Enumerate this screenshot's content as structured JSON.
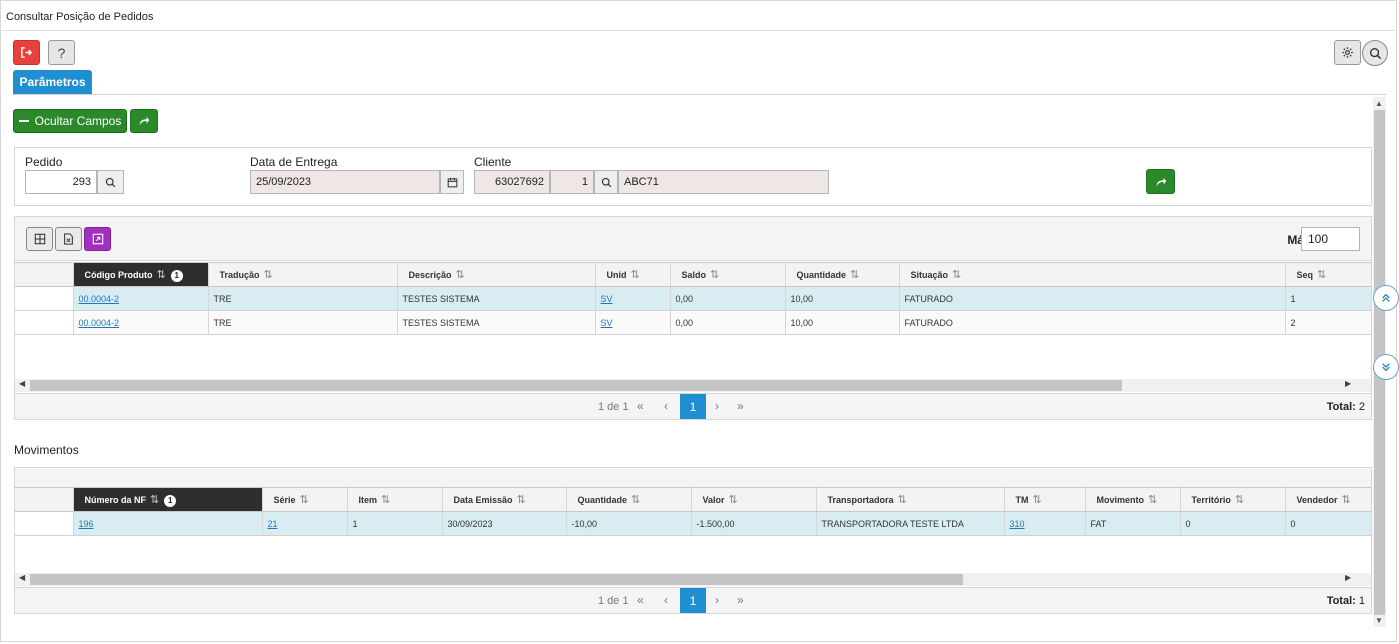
{
  "window": {
    "title": "Consultar Posição de Pedidos"
  },
  "toolbar": {
    "exit_icon": "exit-icon",
    "help_label": "?"
  },
  "tabs": [
    {
      "label": "Parâmetros"
    }
  ],
  "actions": {
    "ocultar_label": "Ocultar Campos"
  },
  "params": {
    "pedido": {
      "label": "Pedido",
      "value": "293"
    },
    "data_entrega": {
      "label": "Data de Entrega",
      "value": "25/09/2023"
    },
    "cliente": {
      "label": "Cliente",
      "code": "63027692",
      "seq": "1",
      "name": "ABC71"
    }
  },
  "grid1": {
    "max_label": "Máx.",
    "max_value": "100",
    "columns": [
      "Código Produto",
      "Tradução",
      "Descrição",
      "Unid",
      "Saldo",
      "Quantidade",
      "Situação",
      "Seq"
    ],
    "sort_badge": "1",
    "rows": [
      [
        "00.0004-2",
        "TRE",
        "TESTES SISTEMA",
        "SV",
        "0,00",
        "10,00",
        "FATURADO",
        "1"
      ],
      [
        "00.0004-2",
        "TRE",
        "TESTES SISTEMA",
        "SV",
        "0,00",
        "10,00",
        "FATURADO",
        "2"
      ]
    ],
    "pager": {
      "info": "1 de 1",
      "current": "1",
      "total_label": "Total:",
      "total_value": "2"
    }
  },
  "movimentos": {
    "label": "Movimentos",
    "columns": [
      "Número da NF",
      "Série",
      "Item",
      "Data Emissão",
      "Quantidade",
      "Valor",
      "Transportadora",
      "TM",
      "Movimento",
      "Território",
      "Vendedor"
    ],
    "sort_badge": "1",
    "rows": [
      [
        "196",
        "21",
        "1",
        "30/09/2023",
        "-10,00",
        "-1.500,00",
        "TRANSPORTADORA TESTE  LTDA",
        "310",
        "FAT",
        "0",
        "0"
      ]
    ],
    "pager": {
      "info": "1 de 1",
      "current": "1",
      "total_label": "Total:",
      "total_value": "1"
    }
  }
}
